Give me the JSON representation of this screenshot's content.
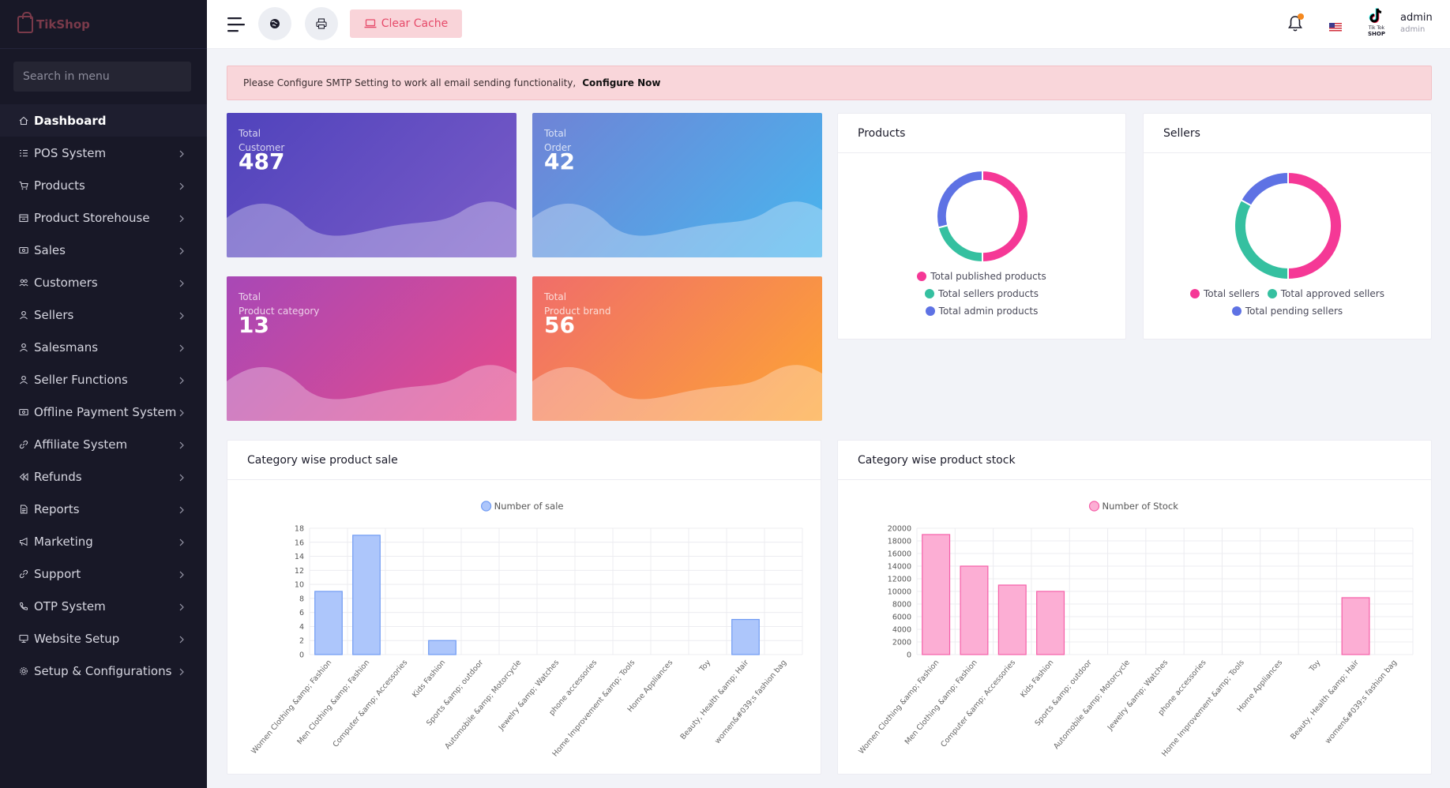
{
  "sidebar": {
    "logo": "TikShop",
    "search_placeholder": "Search in menu",
    "items": [
      {
        "label": "Dashboard",
        "icon": "home-icon",
        "active": true,
        "has_children": false
      },
      {
        "label": "POS System",
        "icon": "list-icon",
        "has_children": true
      },
      {
        "label": "Products",
        "icon": "cart-icon",
        "has_children": true
      },
      {
        "label": "Product Storehouse",
        "icon": "storehouse-icon",
        "has_children": true
      },
      {
        "label": "Sales",
        "icon": "money-icon",
        "has_children": true
      },
      {
        "label": "Customers",
        "icon": "users-icon",
        "has_children": true
      },
      {
        "label": "Sellers",
        "icon": "user-icon",
        "has_children": true
      },
      {
        "label": "Salesmans",
        "icon": "user-icon",
        "has_children": true
      },
      {
        "label": "Seller Functions",
        "icon": "user-icon",
        "has_children": true
      },
      {
        "label": "Offline Payment System",
        "icon": "money-icon",
        "has_children": true
      },
      {
        "label": "Affiliate System",
        "icon": "link-icon",
        "has_children": true
      },
      {
        "label": "Refunds",
        "icon": "backward-icon",
        "has_children": true
      },
      {
        "label": "Reports",
        "icon": "file-icon",
        "has_children": true
      },
      {
        "label": "Marketing",
        "icon": "bullhorn-icon",
        "has_children": true
      },
      {
        "label": "Support",
        "icon": "link-icon",
        "has_children": true
      },
      {
        "label": "OTP System",
        "icon": "phone-icon",
        "has_children": true
      },
      {
        "label": "Website Setup",
        "icon": "desktop-icon",
        "has_children": true
      },
      {
        "label": "Setup & Configurations",
        "icon": "gear-icon",
        "has_children": true
      }
    ]
  },
  "header": {
    "clear_cache_label": "Clear Cache",
    "user_name": "admin",
    "user_role": "admin",
    "brand_logo_text_1": "Tik Tok",
    "brand_logo_text_2": "SHOP"
  },
  "alert": {
    "message": "Please Configure SMTP Setting to work all email sending functionality,",
    "link_label": "Configure Now"
  },
  "stats": [
    {
      "label_1": "Total",
      "label_2": "Customer",
      "value": "487"
    },
    {
      "label_1": "Total",
      "label_2": "Order",
      "value": "42"
    },
    {
      "label_1": "Total",
      "label_2": "Product category",
      "value": "13"
    },
    {
      "label_1": "Total",
      "label_2": "Product brand",
      "value": "56"
    }
  ],
  "products_card": {
    "title": "Products",
    "legend": [
      "Total published products",
      "Total sellers products",
      "Total admin products"
    ]
  },
  "sellers_card": {
    "title": "Sellers",
    "legend": [
      "Total sellers",
      "Total approved sellers",
      "Total pending sellers"
    ]
  },
  "sales_card": {
    "title": "Category wise product sale"
  },
  "stock_card": {
    "title": "Category wise product stock"
  },
  "colors": {
    "pink": "#f53896",
    "teal": "#35c0a0",
    "blue": "#5e72e4",
    "sale_bar_fill": "#adc6fb",
    "sale_bar_stroke": "#6f9af3",
    "stock_bar_fill": "#fcaed4",
    "stock_bar_stroke": "#f55fa8"
  },
  "chart_data": [
    {
      "type": "pie",
      "title": "Products",
      "labels": [
        "Total published products",
        "Total sellers products",
        "Total admin products"
      ],
      "values": [
        50,
        21,
        29
      ],
      "colors": [
        "#f53896",
        "#35c0a0",
        "#5e72e4"
      ]
    },
    {
      "type": "pie",
      "title": "Sellers",
      "labels": [
        "Total sellers",
        "Total approved sellers",
        "Total pending sellers"
      ],
      "values": [
        50,
        33,
        17
      ],
      "colors": [
        "#f53896",
        "#35c0a0",
        "#5e72e4"
      ]
    },
    {
      "type": "bar",
      "title": "Category wise product sale",
      "categories": [
        "Women Clothing &amp; Fashion",
        "Men Clothing &amp; Fashion",
        "Computer &amp; Accessories",
        "Kids Fashion",
        "Sports &amp; outdoor",
        "Automobile &amp; Motorcycle",
        "Jewelry &amp; Watches",
        "phone accessories",
        "Home Improvement &amp; Tools",
        "Home Appliances",
        "Toy",
        "Beauty, Health &amp; Hair",
        "women&#039;s fashion bag"
      ],
      "series": [
        {
          "name": "Number of sale",
          "values": [
            9,
            17,
            0,
            2,
            0,
            0,
            0,
            0,
            0,
            0,
            0,
            5,
            0
          ]
        }
      ],
      "ylim": [
        0,
        18
      ],
      "yticks": [
        0,
        2,
        4,
        6,
        8,
        10,
        12,
        14,
        16,
        18
      ],
      "legend": "top-center",
      "grid": true
    },
    {
      "type": "bar",
      "title": "Category wise product stock",
      "categories": [
        "Women Clothing &amp; Fashion",
        "Men Clothing &amp; Fashion",
        "Computer &amp; Accessories",
        "Kids Fashion",
        "Sports &amp; outdoor",
        "Automobile &amp; Motorcycle",
        "Jewelry &amp; Watches",
        "phone accessories",
        "Home Improvement &amp; Tools",
        "Home Appliances",
        "Toy",
        "Beauty, Health &amp; Hair",
        "women&#039;s fashion bag"
      ],
      "series": [
        {
          "name": "Number of Stock",
          "values": [
            19000,
            14000,
            11000,
            10000,
            0,
            0,
            0,
            0,
            0,
            0,
            0,
            9000,
            0
          ]
        }
      ],
      "ylim": [
        0,
        20000
      ],
      "yticks": [
        0,
        2000,
        4000,
        6000,
        8000,
        10000,
        12000,
        14000,
        16000,
        18000,
        20000
      ],
      "legend": "top-center",
      "grid": true
    }
  ]
}
